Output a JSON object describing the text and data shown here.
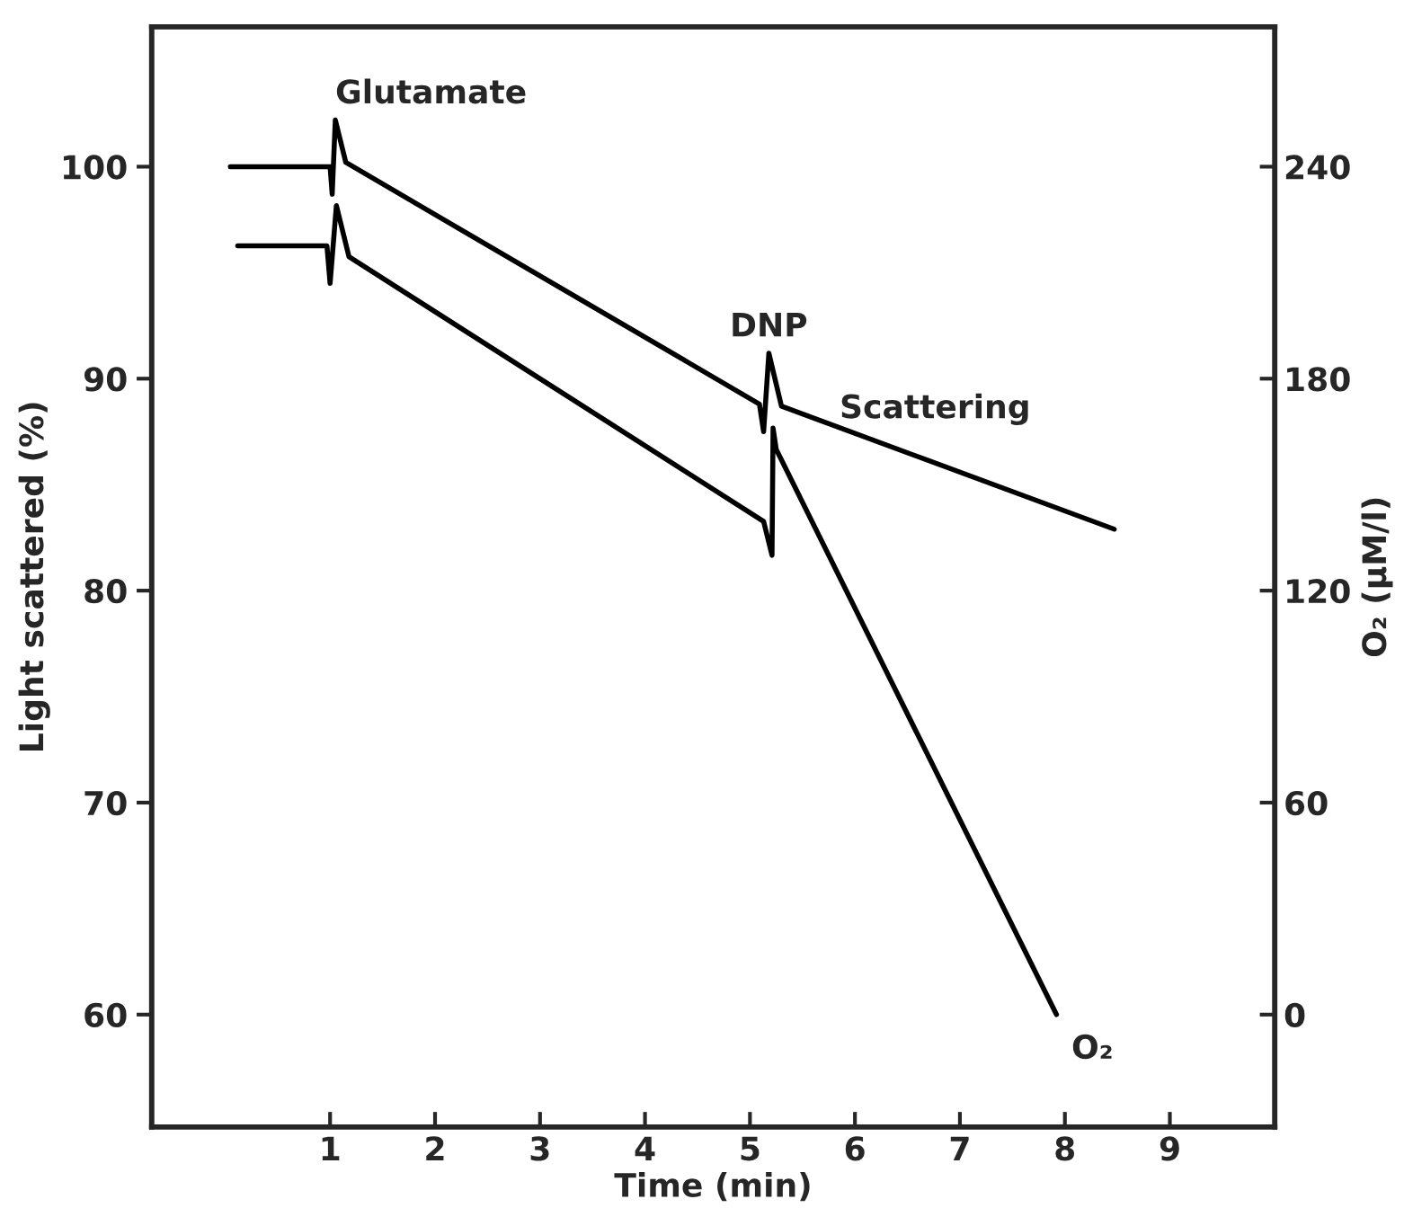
{
  "chart_data": {
    "type": "line",
    "xlabel": "Time (min)",
    "ylabel": "Light scattered (%)",
    "y2label": "O₂ (μM/l)",
    "xlim": [
      -0.7,
      10.0
    ],
    "xticks": [
      1,
      2,
      3,
      4,
      5,
      6,
      7,
      8,
      9
    ],
    "ylim": [
      54.7,
      106.6
    ],
    "yticks": [
      60,
      70,
      80,
      90,
      100
    ],
    "y2lim": [
      -31.8,
      279.6
    ],
    "y2ticks": [
      0,
      60,
      120,
      180,
      240
    ],
    "grid": false,
    "legend": false,
    "marker": "none",
    "line_style": "solid",
    "annotations": [
      {
        "text": "Glutamate",
        "x": 1.05,
        "y": 102.2
      },
      {
        "text": "DNP",
        "x": 5.18,
        "y": 91.2
      }
    ],
    "series": [
      {
        "name": "Scattering",
        "color": "#000000",
        "x": [
          0.05,
          1.0,
          1.02,
          1.05,
          1.15,
          5.09,
          5.13,
          5.18,
          5.3,
          8.47
        ],
        "values": [
          100,
          100,
          98.7,
          102.2,
          100.2,
          88.8,
          87.5,
          91.2,
          88.7,
          82.9
        ]
      },
      {
        "name": "O₂",
        "color": "#000000",
        "axis": "y2",
        "x": [
          0.12,
          0.97,
          1.0,
          1.06,
          1.18,
          5.13,
          5.21,
          5.22,
          5.25,
          7.92
        ],
        "values": [
          217.6,
          217.6,
          207,
          229,
          214.5,
          139.6,
          130,
          166,
          160,
          0
        ]
      }
    ]
  }
}
